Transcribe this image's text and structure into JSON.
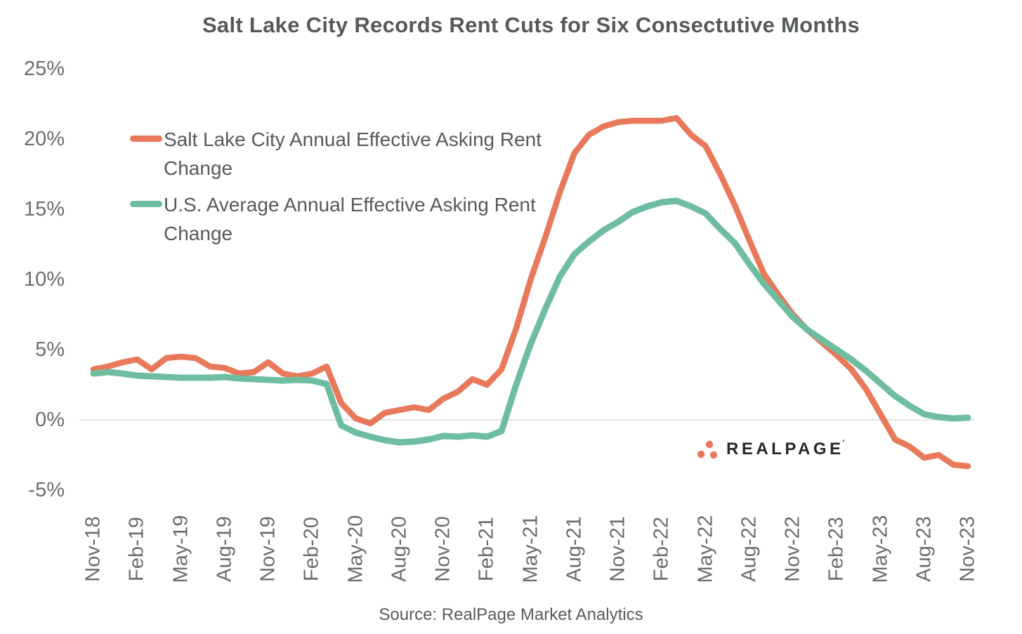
{
  "colors": {
    "slc_line": "#E8795B",
    "us_line": "#6FBDA0",
    "gridline": "#D8D8D8",
    "title_text": "#56595C",
    "axis_text": "#6A6C6E",
    "logo_text": "#26282A"
  },
  "logo": {
    "text": "REALPAGE",
    "trademark": "'",
    "dots_icon": "realpage-three-dots"
  },
  "chart_data": {
    "type": "line",
    "title": "Salt Lake City Records Rent Cuts for Six Consectutive Months",
    "source": "Source: RealPage Market Analytics",
    "grid": "zero-line-only",
    "legend_position": "upper-left-inside",
    "ylim": [
      -5,
      25
    ],
    "y_ticks": [
      25,
      20,
      15,
      10,
      5,
      0,
      -5
    ],
    "y_tick_labels": [
      "25%",
      "20%",
      "15%",
      "10%",
      "5%",
      "0%",
      "-5%"
    ],
    "x_tick_labels": [
      "Nov-18",
      "Feb-19",
      "May-19",
      "Aug-19",
      "Nov-19",
      "Feb-20",
      "May-20",
      "Aug-20",
      "Nov-20",
      "Feb-21",
      "May-21",
      "Aug-21",
      "Nov-21",
      "Feb-22",
      "May-22",
      "Aug-22",
      "Nov-22",
      "Feb-23",
      "May-23",
      "Aug-23",
      "Nov-23"
    ],
    "x_months": [
      "Nov-18",
      "Dec-18",
      "Jan-19",
      "Feb-19",
      "Mar-19",
      "Apr-19",
      "May-19",
      "Jun-19",
      "Jul-19",
      "Aug-19",
      "Sep-19",
      "Oct-19",
      "Nov-19",
      "Dec-19",
      "Jan-20",
      "Feb-20",
      "Mar-20",
      "Apr-20",
      "May-20",
      "Jun-20",
      "Jul-20",
      "Aug-20",
      "Sep-20",
      "Oct-20",
      "Nov-20",
      "Dec-20",
      "Jan-21",
      "Feb-21",
      "Mar-21",
      "Apr-21",
      "May-21",
      "Jun-21",
      "Jul-21",
      "Aug-21",
      "Sep-21",
      "Oct-21",
      "Nov-21",
      "Dec-21",
      "Jan-22",
      "Feb-22",
      "Mar-22",
      "Apr-22",
      "May-22",
      "Jun-22",
      "Jul-22",
      "Aug-22",
      "Sep-22",
      "Oct-22",
      "Nov-22",
      "Dec-22",
      "Jan-23",
      "Feb-23",
      "Mar-23",
      "Apr-23",
      "May-23",
      "Jun-23",
      "Jul-23",
      "Aug-23",
      "Sep-23",
      "Oct-23",
      "Nov-23"
    ],
    "series": [
      {
        "name": "Salt Lake City Annual Effective Asking Rent Change",
        "color": "#E8795B",
        "stroke_width": 8.5,
        "values": [
          3.6,
          3.8,
          4.1,
          4.3,
          3.6,
          4.4,
          4.5,
          4.4,
          3.8,
          3.7,
          3.3,
          3.4,
          4.1,
          3.3,
          3.1,
          3.3,
          3.8,
          1.2,
          0.1,
          -0.25,
          0.5,
          0.7,
          0.9,
          0.7,
          1.5,
          2.0,
          2.9,
          2.5,
          3.6,
          6.5,
          10.0,
          13.0,
          16.2,
          19.0,
          20.3,
          20.9,
          21.2,
          21.3,
          21.3,
          21.3,
          21.5,
          20.3,
          19.5,
          17.5,
          15.3,
          12.8,
          10.4,
          8.9,
          7.5,
          6.4,
          5.5,
          4.6,
          3.6,
          2.2,
          0.4,
          -1.4,
          -1.9,
          -2.7,
          -2.5,
          -3.2,
          -3.3
        ]
      },
      {
        "name": "U.S. Average Annual Effective Asking Rent Change",
        "color": "#6FBDA0",
        "stroke_width": 9,
        "values": [
          3.3,
          3.4,
          3.3,
          3.15,
          3.1,
          3.05,
          3.0,
          3.0,
          3.0,
          3.05,
          2.95,
          2.9,
          2.85,
          2.8,
          2.85,
          2.8,
          2.55,
          -0.4,
          -0.9,
          -1.2,
          -1.45,
          -1.6,
          -1.55,
          -1.4,
          -1.15,
          -1.2,
          -1.1,
          -1.2,
          -0.8,
          2.5,
          5.4,
          7.9,
          10.2,
          11.8,
          12.7,
          13.5,
          14.1,
          14.8,
          15.2,
          15.5,
          15.6,
          15.2,
          14.7,
          13.6,
          12.6,
          11.1,
          9.7,
          8.5,
          7.3,
          6.4,
          5.7,
          5.0,
          4.3,
          3.5,
          2.6,
          1.7,
          1.0,
          0.4,
          0.2,
          0.1,
          0.15
        ]
      }
    ]
  }
}
